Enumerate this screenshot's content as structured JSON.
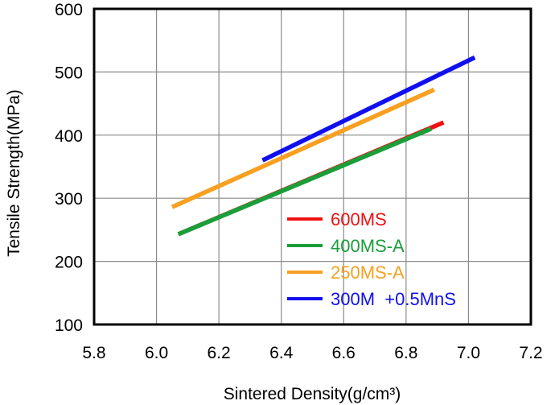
{
  "chart_data": {
    "type": "line",
    "xlabel": "Sintered Density(g/cm³)",
    "ylabel": "Tensile Strength(MPa)",
    "xlim": [
      5.8,
      7.2
    ],
    "ylim": [
      100,
      600
    ],
    "xticks": [
      "5.8",
      "6.0",
      "6.2",
      "6.4",
      "6.6",
      "6.8",
      "7.0",
      "7.2"
    ],
    "yticks": [
      "100",
      "200",
      "300",
      "400",
      "500",
      "600"
    ],
    "grid": true,
    "legend_position": "bottom-right",
    "series": [
      {
        "name": "600MS",
        "color": "#ee1111",
        "x": [
          6.07,
          6.92
        ],
        "y": [
          243,
          420
        ]
      },
      {
        "name": "400MS-A",
        "color": "#1a9e3a",
        "x": [
          6.07,
          6.88
        ],
        "y": [
          243,
          410
        ]
      },
      {
        "name": "250MS-A",
        "color": "#f7a021",
        "x": [
          6.05,
          6.89
        ],
        "y": [
          286,
          472
        ]
      },
      {
        "name": "300M  +0.5MnS",
        "color": "#1010ee",
        "x": [
          6.34,
          7.02
        ],
        "y": [
          360,
          523
        ]
      }
    ]
  }
}
